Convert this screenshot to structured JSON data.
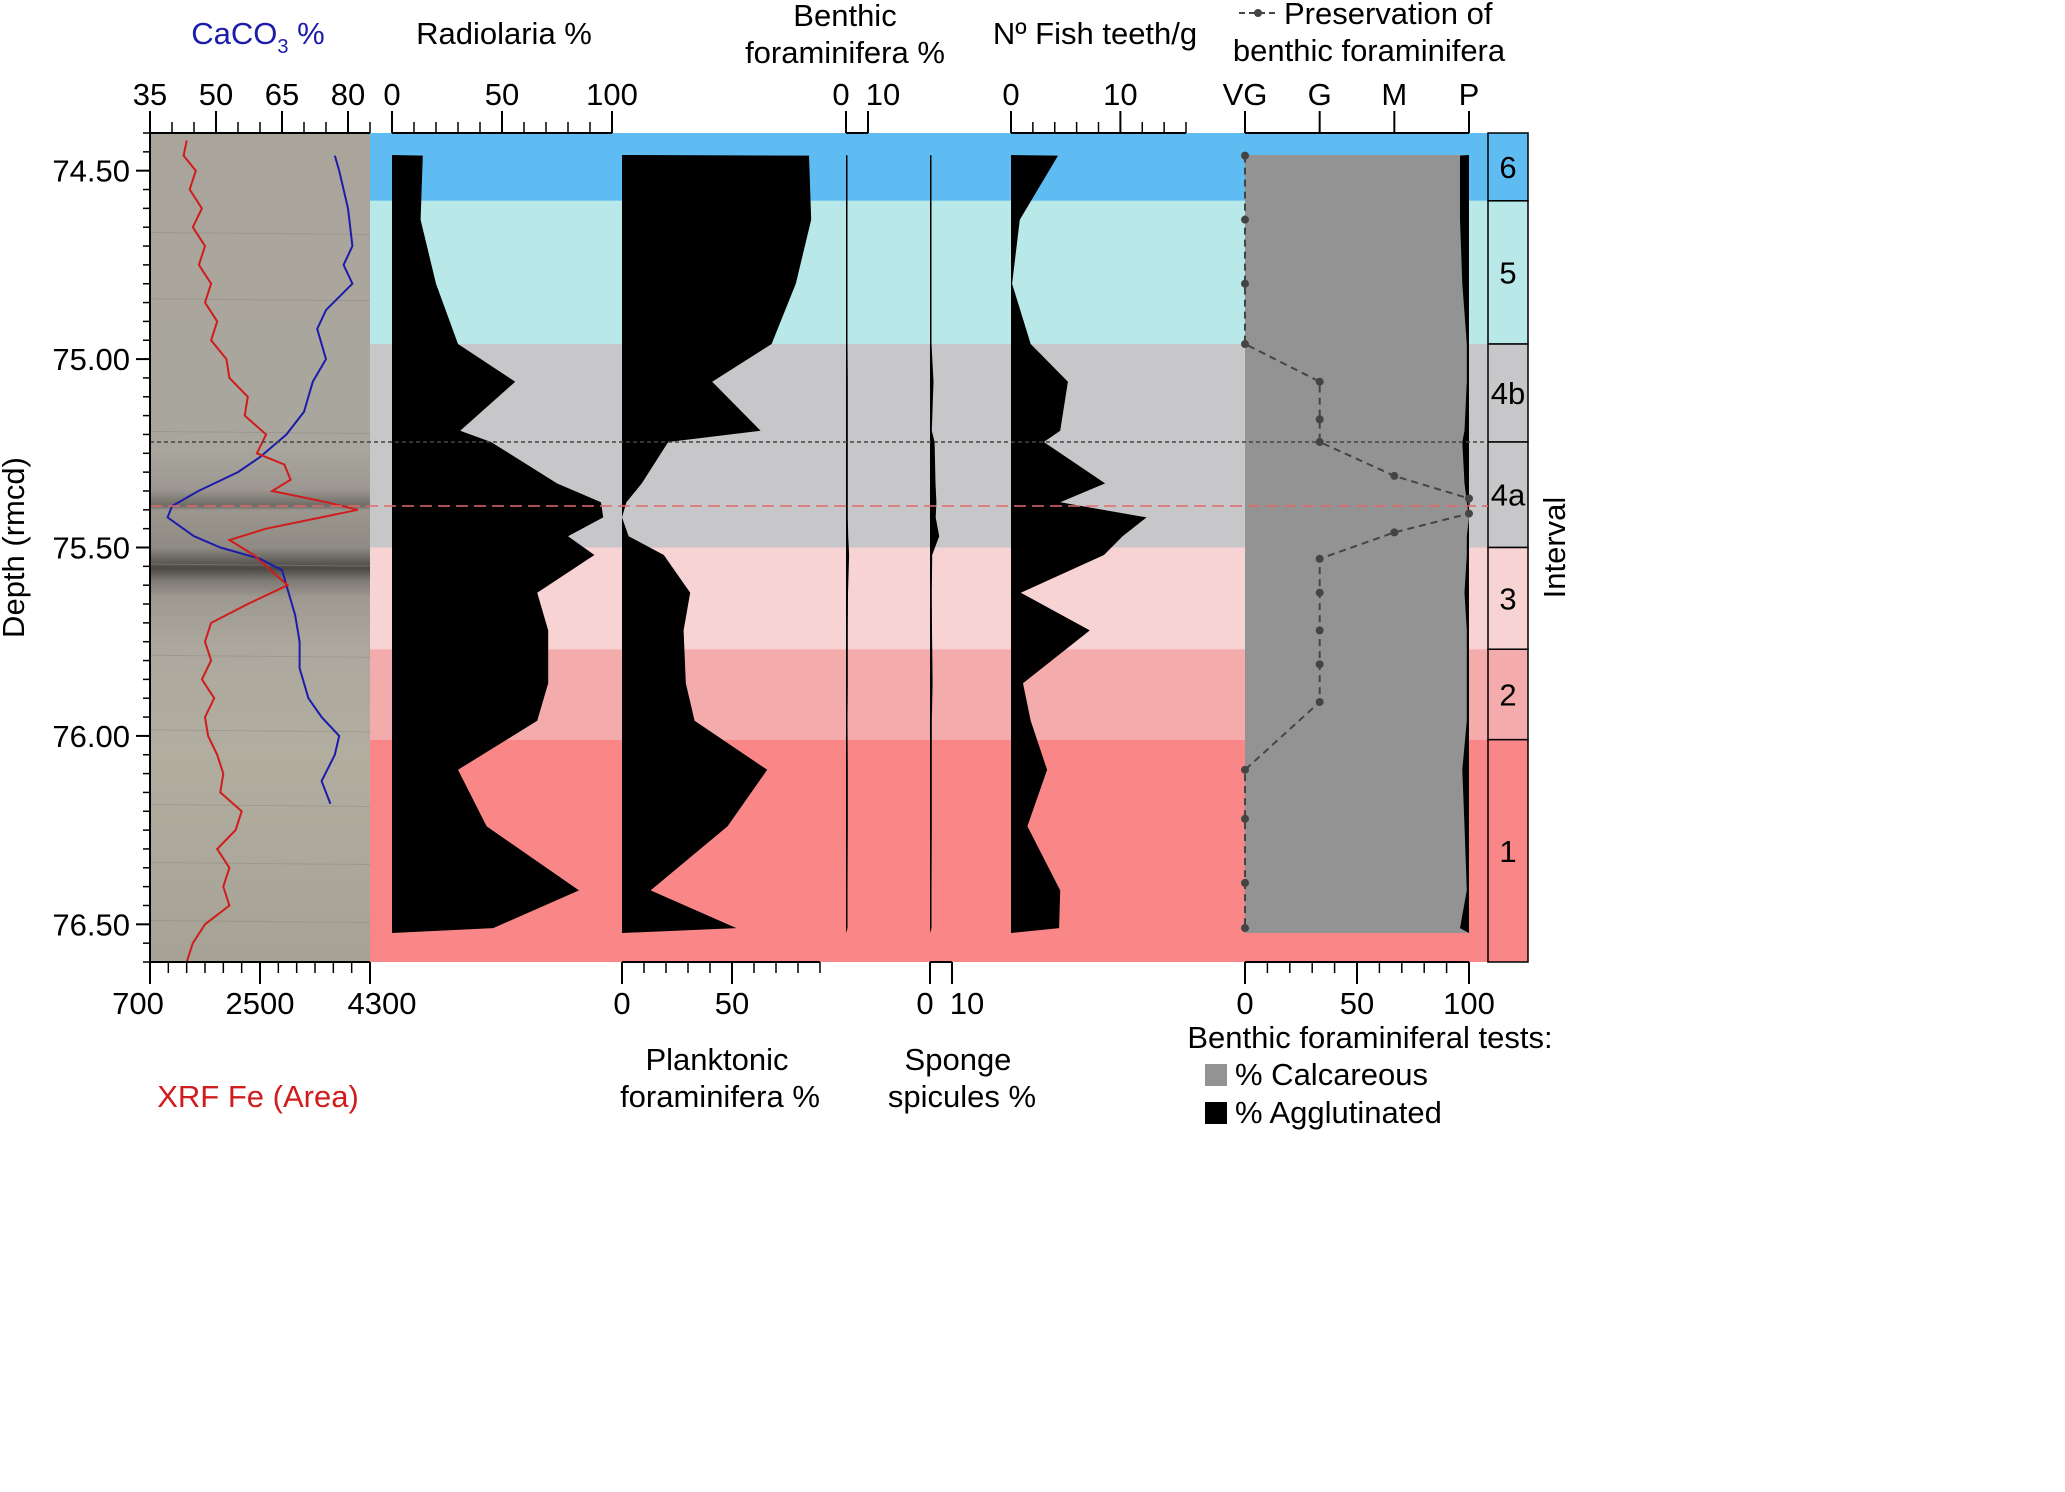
{
  "chart_data": {
    "type": "stratigraphic-log",
    "depth_axis": {
      "label": "Depth (rmcd)",
      "range": [
        74.4,
        76.6
      ],
      "ticks": [
        "74.50",
        "75.00",
        "75.50",
        "76.00",
        "76.50"
      ],
      "tick_values": [
        74.5,
        75.0,
        75.5,
        76.0,
        76.5
      ]
    },
    "samples_depth": [
      74.46,
      74.63,
      74.8,
      74.96,
      75.06,
      75.19,
      75.22,
      75.33,
      75.38,
      75.42,
      75.47,
      75.52,
      75.62,
      75.72,
      75.86,
      75.96,
      76.09,
      76.24,
      76.41,
      76.51
    ],
    "intervals": [
      {
        "label": "6",
        "top": 74.4,
        "bottom": 74.58,
        "color": "#5ebcf2"
      },
      {
        "label": "5",
        "top": 74.58,
        "bottom": 74.96,
        "color": "#b8e9e8"
      },
      {
        "label": "4b",
        "top": 74.96,
        "bottom": 75.22,
        "color": "#c7c6c8"
      },
      {
        "label": "4a",
        "top": 75.22,
        "bottom": 75.5,
        "color": "#c7c6c8"
      },
      {
        "label": "3",
        "top": 75.5,
        "bottom": 75.77,
        "color": "#f7d3d4"
      },
      {
        "label": "2",
        "top": 75.77,
        "bottom": 76.01,
        "color": "#f3abab"
      },
      {
        "label": "1",
        "top": 76.01,
        "bottom": 76.6,
        "color": "#f98787"
      }
    ],
    "interval_axis_label": "Interval",
    "reference_lines": [
      {
        "depth": 75.22,
        "color": "#444444",
        "style": "dotted"
      },
      {
        "depth": 75.39,
        "color": "#e06a6a",
        "style": "dashed"
      }
    ],
    "core_panel": {
      "caco3": {
        "title_prefix": "CaCO",
        "title_sub": "3",
        "title_suffix": " %",
        "color": "#1c1cab",
        "range": [
          35,
          85
        ],
        "ticks": [
          "35",
          "50",
          "65",
          "80"
        ],
        "tick_values": [
          35,
          50,
          65,
          80
        ],
        "depth": [
          74.46,
          74.5,
          74.6,
          74.7,
          74.75,
          74.8,
          74.87,
          74.92,
          75.0,
          75.06,
          75.14,
          75.2,
          75.26,
          75.3,
          75.35,
          75.39,
          75.42,
          75.47,
          75.5,
          75.53,
          75.56,
          75.6,
          75.68,
          75.75,
          75.82,
          75.9,
          75.95,
          76.0,
          76.05,
          76.12,
          76.18
        ],
        "values": [
          77,
          78,
          80,
          81,
          79,
          81,
          75,
          73,
          75,
          72,
          70,
          66,
          60,
          55,
          46,
          40,
          39,
          45,
          51,
          60,
          65,
          66,
          68,
          69,
          69,
          71,
          74,
          78,
          77,
          74,
          76
        ]
      },
      "fe": {
        "title": "XRF Fe (Area)",
        "color": "#d01c1c",
        "range": [
          700,
          4300
        ],
        "ticks": [
          "700",
          "2500",
          "4300"
        ],
        "tick_values": [
          700,
          2500,
          4300
        ],
        "depth": [
          74.42,
          74.46,
          74.5,
          74.55,
          74.6,
          74.65,
          74.7,
          74.75,
          74.8,
          74.85,
          74.9,
          74.95,
          75.0,
          75.05,
          75.1,
          75.15,
          75.2,
          75.25,
          75.28,
          75.32,
          75.35,
          75.38,
          75.4,
          75.42,
          75.45,
          75.48,
          75.52,
          75.55,
          75.6,
          75.65,
          75.7,
          75.75,
          75.8,
          75.85,
          75.9,
          75.95,
          76.0,
          76.05,
          76.1,
          76.15,
          76.2,
          76.25,
          76.3,
          76.35,
          76.4,
          76.45,
          76.5,
          76.55,
          76.6
        ],
        "values": [
          1300,
          1250,
          1450,
          1350,
          1550,
          1400,
          1600,
          1500,
          1700,
          1600,
          1800,
          1700,
          1950,
          2000,
          2300,
          2250,
          2600,
          2450,
          2900,
          3000,
          2700,
          3600,
          4100,
          3500,
          2600,
          2000,
          2400,
          2600,
          2950,
          2300,
          1700,
          1600,
          1700,
          1550,
          1750,
          1600,
          1650,
          1800,
          1900,
          1850,
          2200,
          2100,
          1800,
          2000,
          1900,
          2000,
          1600,
          1400,
          1300
        ]
      }
    },
    "radiolaria": {
      "title": "Radiolaria %",
      "range": [
        0,
        100
      ],
      "ticks": [
        "0",
        "50",
        "100"
      ],
      "tick_values": [
        0,
        50,
        100
      ],
      "values": [
        14,
        13,
        20,
        30,
        56,
        31,
        45,
        75,
        95,
        96,
        80,
        92,
        66,
        71,
        71,
        66,
        30,
        43,
        85,
        46
      ]
    },
    "planktonic": {
      "title_line1": "Planktonic",
      "title_line2": "foraminifera %",
      "range": [
        0,
        90
      ],
      "ticks": [
        "0",
        "50"
      ],
      "tick_values": [
        0,
        50
      ],
      "values": [
        85,
        86,
        79,
        68,
        41,
        63,
        21,
        9,
        2,
        0,
        3,
        19,
        31,
        28,
        29,
        33,
        66,
        48,
        13,
        52
      ]
    },
    "benthic": {
      "title_line1": "Benthic",
      "title_line2": "foraminifera %",
      "range": [
        0,
        10
      ],
      "ticks": [
        "0",
        "10"
      ],
      "tick_values": [
        0,
        10
      ],
      "values": [
        0.7,
        0.7,
        0.7,
        0.7,
        0.8,
        0.8,
        0.8,
        0.8,
        0.8,
        0.8,
        1.0,
        1.4,
        0.9,
        0.8,
        0.8,
        0.7,
        0.8,
        0.8,
        0.7,
        0.7
      ]
    },
    "sponge": {
      "title_line1": "Sponge",
      "title_line2": "spicules %",
      "range": [
        0,
        10
      ],
      "ticks": [
        "0",
        "10"
      ],
      "tick_values": [
        0,
        10
      ],
      "values": [
        0.7,
        0.7,
        0.7,
        0.7,
        1.6,
        0.8,
        2.1,
        2.5,
        2.9,
        2.6,
        4.2,
        1.0,
        0.8,
        0.9,
        1.2,
        0.8,
        0.8,
        0.8,
        0.7,
        0.7
      ]
    },
    "fish_teeth": {
      "title": "Nº Fish teeth/g",
      "range": [
        0,
        16
      ],
      "ticks": [
        "0",
        "10"
      ],
      "tick_values": [
        0,
        10
      ],
      "values": [
        4.3,
        0.8,
        0.1,
        1.8,
        5.2,
        4.5,
        3.0,
        8.6,
        4.5,
        12.4,
        10.2,
        8.5,
        0.9,
        7.2,
        1.1,
        1.8,
        3.3,
        1.5,
        4.5,
        4.4
      ]
    },
    "preservation": {
      "title_line1": "Preservation of",
      "title_line2": "benthic foraminifera",
      "categories": [
        "VG",
        "G",
        "M",
        "P"
      ],
      "depth": [
        74.46,
        74.63,
        74.8,
        74.96,
        75.06,
        75.16,
        75.22,
        75.31,
        75.37,
        75.41,
        75.46,
        75.53,
        75.62,
        75.72,
        75.81,
        75.91,
        76.09,
        76.22,
        76.39,
        76.51
      ],
      "values": [
        0,
        0,
        0,
        0,
        1,
        1,
        1,
        2,
        3,
        3,
        2,
        1,
        1,
        1,
        1,
        1,
        0,
        0,
        0,
        0
      ]
    },
    "tests": {
      "range": [
        0,
        100
      ],
      "ticks": [
        "0",
        "50",
        "100"
      ],
      "tick_values": [
        0,
        50,
        100
      ],
      "agglutinated": [
        4,
        4,
        3,
        1,
        1,
        2,
        3,
        2,
        1,
        0,
        1,
        1,
        2,
        1,
        1,
        1,
        3,
        2,
        1,
        4
      ],
      "legend_title": "Benthic foraminiferal tests:",
      "legend": [
        {
          "label": "% Calcareous",
          "color": "#939393"
        },
        {
          "label": "% Agglutinated",
          "color": "#000000"
        }
      ]
    }
  }
}
